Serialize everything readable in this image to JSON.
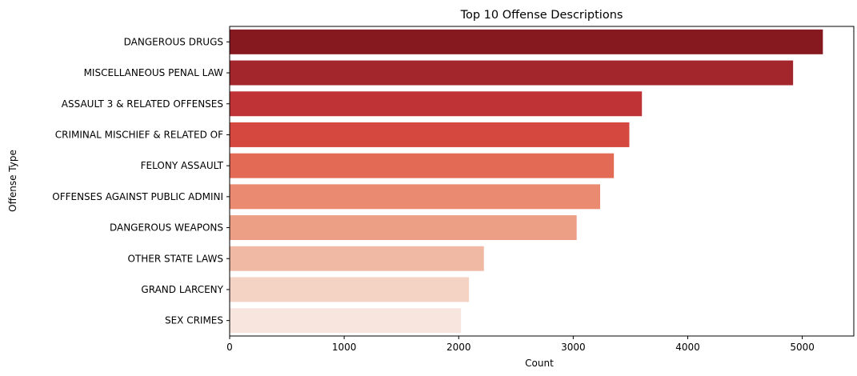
{
  "chart_data": {
    "type": "bar",
    "orientation": "horizontal",
    "title": "Top 10 Offense Descriptions",
    "xlabel": "Count",
    "ylabel": "Offense Type",
    "xlim": [
      0,
      5450
    ],
    "xticks": [
      0,
      1000,
      2000,
      3000,
      4000,
      5000
    ],
    "grid": false,
    "categories": [
      "DANGEROUS DRUGS",
      "MISCELLANEOUS PENAL LAW",
      "ASSAULT 3 & RELATED OFFENSES",
      "CRIMINAL MISCHIEF & RELATED OF",
      "FELONY ASSAULT",
      "OFFENSES AGAINST PUBLIC ADMINI",
      "DANGEROUS WEAPONS",
      "OTHER STATE LAWS",
      "GRAND LARCENY",
      "SEX CRIMES"
    ],
    "values": [
      5180,
      4920,
      3600,
      3490,
      3355,
      3235,
      3030,
      2220,
      2090,
      2020
    ],
    "colors": [
      "#85191f",
      "#a3262c",
      "#bf3336",
      "#d44840",
      "#e36b55",
      "#ea8a71",
      "#ec9f85",
      "#f0b9a4",
      "#f4d2c4",
      "#f8e5de"
    ]
  }
}
